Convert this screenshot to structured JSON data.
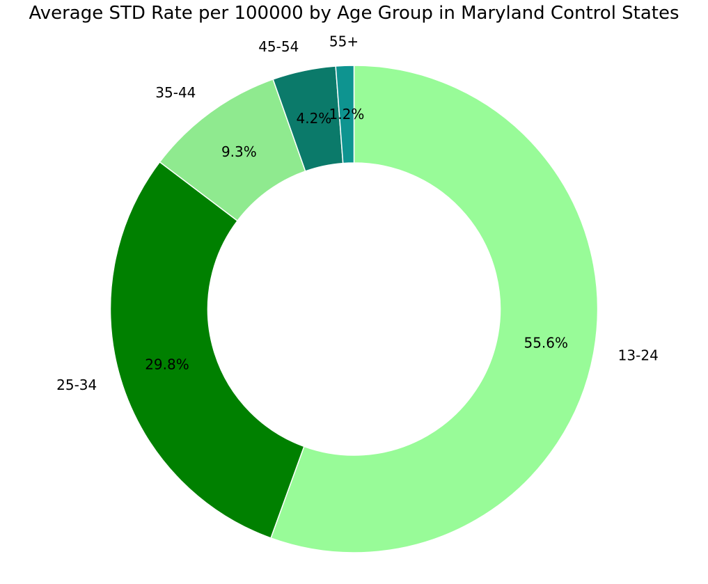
{
  "chart_data": {
    "type": "pie",
    "variant": "donut",
    "title": "Average STD Rate per 100000 by Age Group in Maryland Control States",
    "slices": [
      {
        "label": "13-24",
        "percent": 55.6,
        "percent_label": "55.6%",
        "color": "#98FB98"
      },
      {
        "label": "25-34",
        "percent": 29.8,
        "percent_label": "29.8%",
        "color": "#008000"
      },
      {
        "label": "35-44",
        "percent": 9.3,
        "percent_label": "9.3%",
        "color": "#8FEA8F"
      },
      {
        "label": "45-54",
        "percent": 4.2,
        "percent_label": "4.2%",
        "color": "#0B7A6A"
      },
      {
        "label": "55+",
        "percent": 1.2,
        "percent_label": "1.2%",
        "color": "#0E9490"
      }
    ],
    "start_angle": "top",
    "direction": "clockwise",
    "edge_color": "#FFFFFF"
  }
}
